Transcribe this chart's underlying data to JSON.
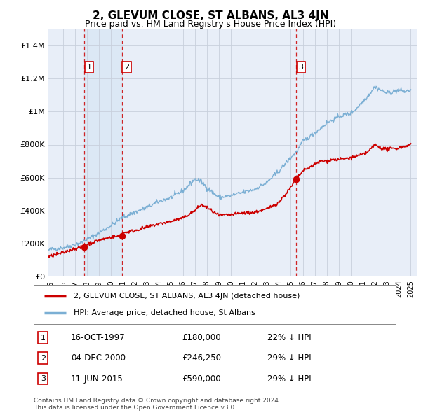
{
  "title": "2, GLEVUM CLOSE, ST ALBANS, AL3 4JN",
  "subtitle": "Price paid vs. HM Land Registry's House Price Index (HPI)",
  "title_fontsize": 11,
  "subtitle_fontsize": 9,
  "background_color": "#ffffff",
  "plot_bg_color": "#e8eef8",
  "grid_color": "#c8d0dc",
  "ylim": [
    0,
    1500000
  ],
  "xlim_start": 1994.8,
  "xlim_end": 2025.5,
  "yticks": [
    0,
    200000,
    400000,
    600000,
    800000,
    1000000,
    1200000,
    1400000
  ],
  "ytick_labels": [
    "£0",
    "£200K",
    "£400K",
    "£600K",
    "£800K",
    "£1M",
    "£1.2M",
    "£1.4M"
  ],
  "xticks": [
    1995,
    1996,
    1997,
    1998,
    1999,
    2000,
    2001,
    2002,
    2003,
    2004,
    2005,
    2006,
    2007,
    2008,
    2009,
    2010,
    2011,
    2012,
    2013,
    2014,
    2015,
    2016,
    2017,
    2018,
    2019,
    2020,
    2021,
    2022,
    2023,
    2024,
    2025
  ],
  "sale_points": [
    {
      "label": "1",
      "year": 1997.79,
      "price": 180000,
      "date": "16-OCT-1997",
      "price_str": "£180,000",
      "hpi_pct": "22% ↓ HPI"
    },
    {
      "label": "2",
      "year": 2000.92,
      "price": 246250,
      "date": "04-DEC-2000",
      "price_str": "£246,250",
      "hpi_pct": "29% ↓ HPI"
    },
    {
      "label": "3",
      "year": 2015.44,
      "price": 590000,
      "date": "11-JUN-2015",
      "price_str": "£590,000",
      "hpi_pct": "29% ↓ HPI"
    }
  ],
  "property_line_color": "#cc0000",
  "hpi_line_color": "#7bafd4",
  "shade_color": "#dce8f5",
  "sale_marker_color": "#cc0000",
  "legend_line1": "2, GLEVUM CLOSE, ST ALBANS, AL3 4JN (detached house)",
  "legend_line2": "HPI: Average price, detached house, St Albans",
  "footnote": "Contains HM Land Registry data © Crown copyright and database right 2024.\nThis data is licensed under the Open Government Licence v3.0.",
  "dashed_line_color": "#cc0000",
  "numbered_box_color": "#cc0000",
  "hpi_knots_x": [
    1994.8,
    1995,
    1996,
    1997,
    1997.5,
    1998,
    1999,
    2000,
    2001,
    2002,
    2003,
    2004,
    2005,
    2006,
    2007,
    2007.5,
    2008,
    2008.5,
    2009,
    2010,
    2011,
    2012,
    2013,
    2014,
    2015,
    2015.5,
    2016,
    2017,
    2018,
    2019,
    2019.5,
    2020,
    2020.5,
    2021,
    2021.5,
    2022,
    2022.5,
    2023,
    2023.5,
    2024,
    2024.5,
    2025
  ],
  "hpi_knots_y": [
    160000,
    165000,
    175000,
    195000,
    205000,
    225000,
    265000,
    310000,
    360000,
    390000,
    420000,
    455000,
    480000,
    520000,
    590000,
    580000,
    540000,
    510000,
    480000,
    490000,
    510000,
    530000,
    570000,
    640000,
    720000,
    760000,
    820000,
    870000,
    930000,
    970000,
    980000,
    990000,
    1020000,
    1060000,
    1100000,
    1150000,
    1130000,
    1110000,
    1120000,
    1130000,
    1120000,
    1130000
  ],
  "prop_knots_x": [
    1994.8,
    1995,
    1996,
    1997,
    1997.79,
    1998,
    1999,
    2000,
    2000.92,
    2001,
    2002,
    2003,
    2004,
    2005,
    2006,
    2007,
    2007.5,
    2008,
    2009,
    2010,
    2011,
    2012,
    2013,
    2014,
    2015,
    2015.44,
    2016,
    2017,
    2017.5,
    2018,
    2018.5,
    2019,
    2019.5,
    2020,
    2020.5,
    2021,
    2021.5,
    2022,
    2022.5,
    2023,
    2023.5,
    2024,
    2024.5,
    2025
  ],
  "prop_knots_y": [
    120000,
    125000,
    145000,
    170000,
    180000,
    195000,
    220000,
    240000,
    246250,
    265000,
    280000,
    300000,
    320000,
    335000,
    355000,
    400000,
    435000,
    420000,
    370000,
    375000,
    385000,
    390000,
    410000,
    450000,
    540000,
    590000,
    640000,
    680000,
    700000,
    700000,
    710000,
    710000,
    715000,
    720000,
    730000,
    740000,
    760000,
    800000,
    780000,
    770000,
    775000,
    780000,
    790000,
    800000
  ]
}
